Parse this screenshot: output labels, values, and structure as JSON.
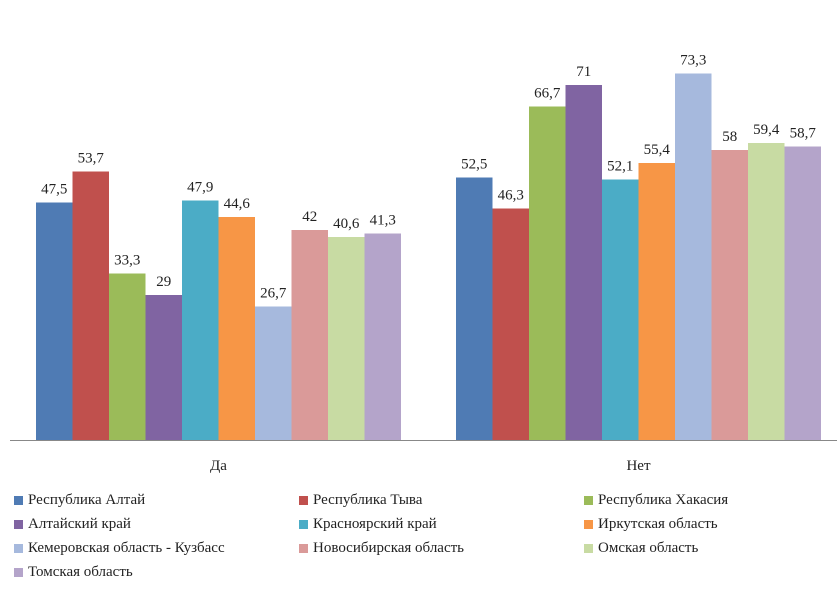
{
  "chart_data": {
    "type": "bar",
    "categories": [
      "Да",
      "Нет"
    ],
    "ylim": [
      0,
      80
    ],
    "grid": false,
    "legend_position": "bottom",
    "series": [
      {
        "name": "Республика Алтай",
        "color": "#4F7BB4",
        "values": [
          47.5,
          52.5
        ]
      },
      {
        "name": "Республика Тыва",
        "color": "#C0504D",
        "values": [
          53.7,
          46.3
        ]
      },
      {
        "name": "Республика Хакасия",
        "color": "#9BBB59",
        "values": [
          33.3,
          66.7
        ]
      },
      {
        "name": "Алтайский край",
        "color": "#8064A2",
        "values": [
          29,
          71
        ]
      },
      {
        "name": "Красноярский край",
        "color": "#4BACC6",
        "values": [
          47.9,
          52.1
        ]
      },
      {
        "name": "Иркутская область",
        "color": "#F79646",
        "values": [
          44.6,
          55.4
        ]
      },
      {
        "name": "Кемеровская область - Кузбасс",
        "color": "#A6B9DD",
        "values": [
          26.7,
          73.3
        ]
      },
      {
        "name": "Новосибирская область",
        "color": "#DA9A99",
        "values": [
          42,
          58
        ]
      },
      {
        "name": "Омская область",
        "color": "#C8DBA3",
        "values": [
          40.6,
          59.4
        ]
      },
      {
        "name": "Томская область",
        "color": "#B4A4CA",
        "values": [
          41.3,
          58.7
        ]
      }
    ],
    "value_labels": [
      [
        "47,5",
        "52,5"
      ],
      [
        "53,7",
        "46,3"
      ],
      [
        "33,3",
        "66,7"
      ],
      [
        "29",
        "71"
      ],
      [
        "47,9",
        "52,1"
      ],
      [
        "44,6",
        "55,4"
      ],
      [
        "26,7",
        "73,3"
      ],
      [
        "42",
        "58"
      ],
      [
        "40,6",
        "59,4"
      ],
      [
        "41,3",
        "58,7"
      ]
    ]
  }
}
